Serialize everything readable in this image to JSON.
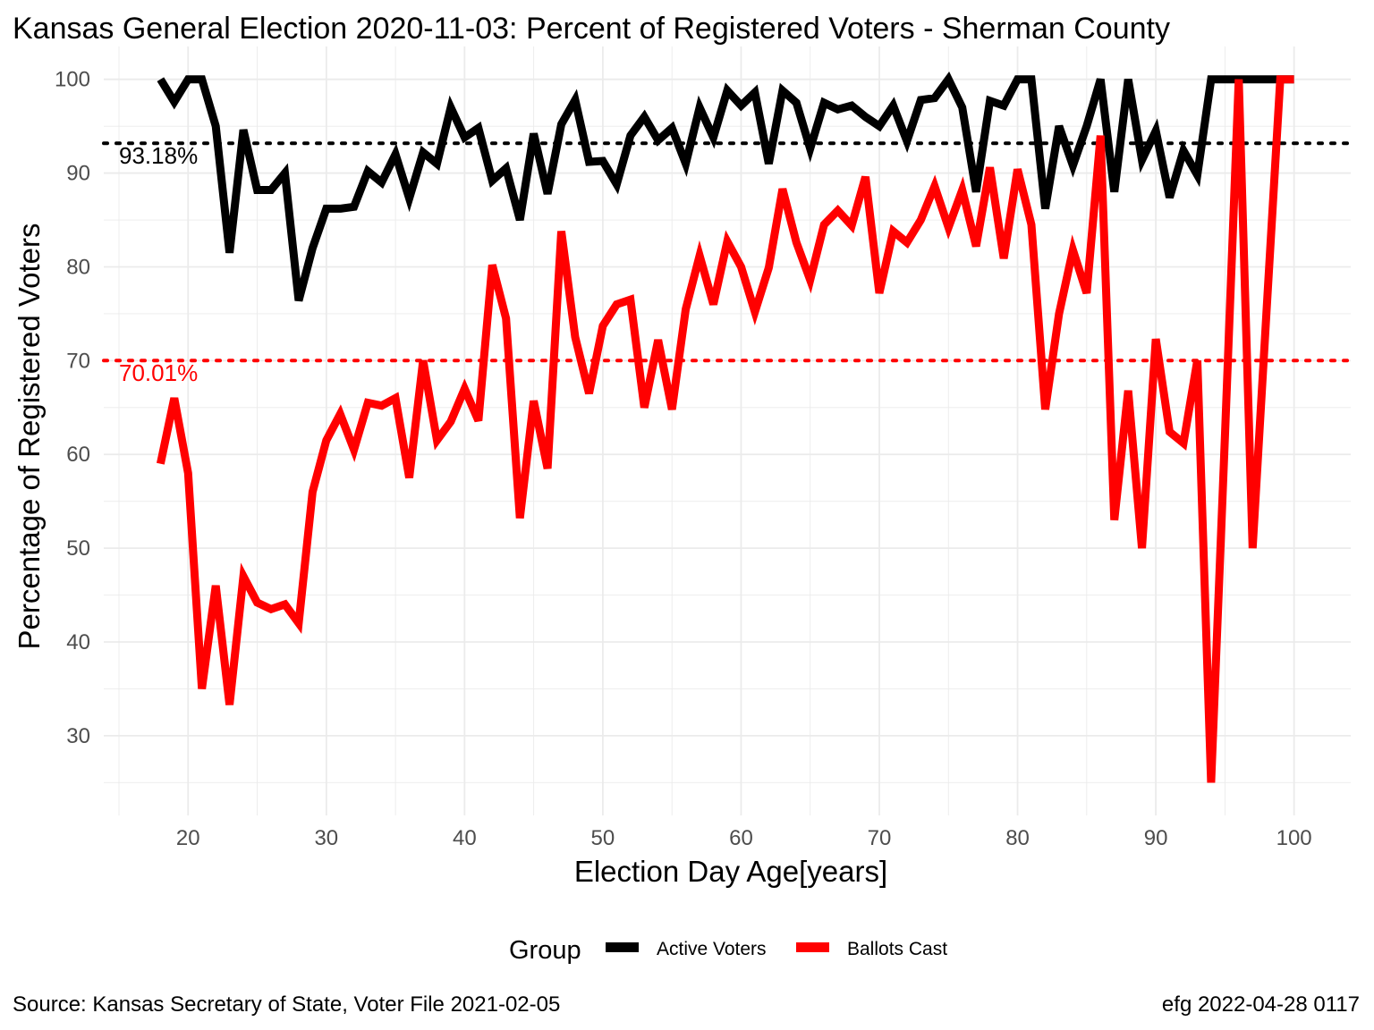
{
  "chart_data": {
    "type": "line",
    "title": "Kansas General Election 2020-11-03:  Percent of Registered Voters - Sherman County",
    "xlabel": "Election Day Age[years]",
    "ylabel": "Percentage of Registered Voters",
    "xlim": [
      13.9,
      104.1
    ],
    "ylim": [
      21.5,
      103.5
    ],
    "x_ticks": [
      20,
      30,
      40,
      50,
      60,
      70,
      80,
      90,
      100
    ],
    "y_ticks": [
      30,
      40,
      50,
      60,
      70,
      80,
      90,
      100
    ],
    "grid": true,
    "legend": {
      "title": "Group",
      "placement": "bottom"
    },
    "series": [
      {
        "name": "Active Voters",
        "color": "#000000",
        "x": [
          18,
          19,
          20,
          21,
          22,
          23,
          24,
          25,
          26,
          27,
          28,
          29,
          30,
          31,
          32,
          33,
          34,
          35,
          36,
          37,
          38,
          39,
          40,
          41,
          42,
          43,
          44,
          45,
          46,
          47,
          48,
          49,
          50,
          51,
          52,
          53,
          54,
          55,
          56,
          57,
          58,
          59,
          60,
          61,
          62,
          63,
          64,
          65,
          66,
          67,
          68,
          69,
          70,
          71,
          72,
          73,
          74,
          75,
          76,
          77,
          78,
          79,
          80,
          81,
          82,
          83,
          84,
          85,
          86,
          87,
          88,
          89,
          90,
          91,
          92,
          93,
          94,
          95,
          96,
          97,
          98,
          99,
          100
        ],
        "values": [
          100,
          97.6,
          100,
          100,
          95,
          81.5,
          94.6,
          88.2,
          88.2,
          90,
          76.4,
          82,
          86.2,
          86.2,
          86.4,
          90.2,
          89,
          92,
          87.3,
          92.2,
          91,
          97,
          93.8,
          94.8,
          89.2,
          90.5,
          85,
          94.2,
          87.8,
          95.2,
          97.8,
          91.2,
          91.3,
          88.8,
          94,
          96,
          93.5,
          94.8,
          91,
          97,
          93.8,
          98.8,
          97.2,
          98.6,
          91,
          98.8,
          97.5,
          92.6,
          97.5,
          96.8,
          97.2,
          96,
          95,
          97.2,
          93.4,
          97.8,
          98,
          100,
          97,
          88,
          97.7,
          97.2,
          100,
          100,
          86.2,
          95,
          90.8,
          95,
          100,
          88,
          100,
          91.4,
          94.5,
          87.4,
          92.4,
          89.8,
          100,
          100,
          100,
          100,
          100,
          100,
          100
        ]
      },
      {
        "name": "Ballots Cast",
        "color": "#ff0000",
        "x": [
          18,
          19,
          20,
          21,
          22,
          23,
          24,
          25,
          26,
          27,
          28,
          29,
          30,
          31,
          32,
          33,
          34,
          35,
          36,
          37,
          38,
          39,
          40,
          41,
          42,
          43,
          44,
          45,
          46,
          47,
          48,
          49,
          50,
          51,
          52,
          53,
          54,
          55,
          56,
          57,
          58,
          59,
          60,
          61,
          62,
          63,
          64,
          65,
          66,
          67,
          68,
          69,
          70,
          71,
          72,
          73,
          74,
          75,
          76,
          77,
          78,
          79,
          80,
          81,
          82,
          83,
          84,
          85,
          86,
          87,
          88,
          89,
          90,
          91,
          92,
          93,
          94,
          95,
          96,
          97,
          98,
          99,
          100
        ],
        "values": [
          59,
          66,
          58,
          35,
          46,
          33.3,
          47,
          44.2,
          43.5,
          44,
          42,
          56,
          61.5,
          64.3,
          60.5,
          65.5,
          65.2,
          66,
          57.5,
          70,
          61.5,
          63.5,
          67,
          63.6,
          80.2,
          74.5,
          53.2,
          65.7,
          58.5,
          83.8,
          72.5,
          66.5,
          73.7,
          76,
          76.5,
          65,
          72.2,
          64.8,
          75.5,
          81.2,
          76,
          82.7,
          80,
          75.2,
          79.9,
          88.3,
          82.6,
          78.6,
          84.5,
          86,
          84.4,
          89.6,
          77.2,
          83.8,
          82.6,
          85,
          88.6,
          84.2,
          88.2,
          82.2,
          90.6,
          80.9,
          90.4,
          84.5,
          64.8,
          75,
          81.8,
          77.2,
          94,
          53,
          66.8,
          50,
          72.3,
          62.4,
          61.2,
          70,
          25,
          62,
          100,
          50,
          75,
          100,
          100
        ]
      }
    ],
    "reference_lines": [
      {
        "y": 93.18,
        "label": "93.18%",
        "color": "#000000"
      },
      {
        "y": 70.01,
        "label": "70.01%",
        "color": "#ff0000"
      }
    ],
    "caption_left": "Source:  Kansas Secretary of State, Voter File  2021-02-05",
    "caption_right": "efg 2022-04-28 0117"
  }
}
